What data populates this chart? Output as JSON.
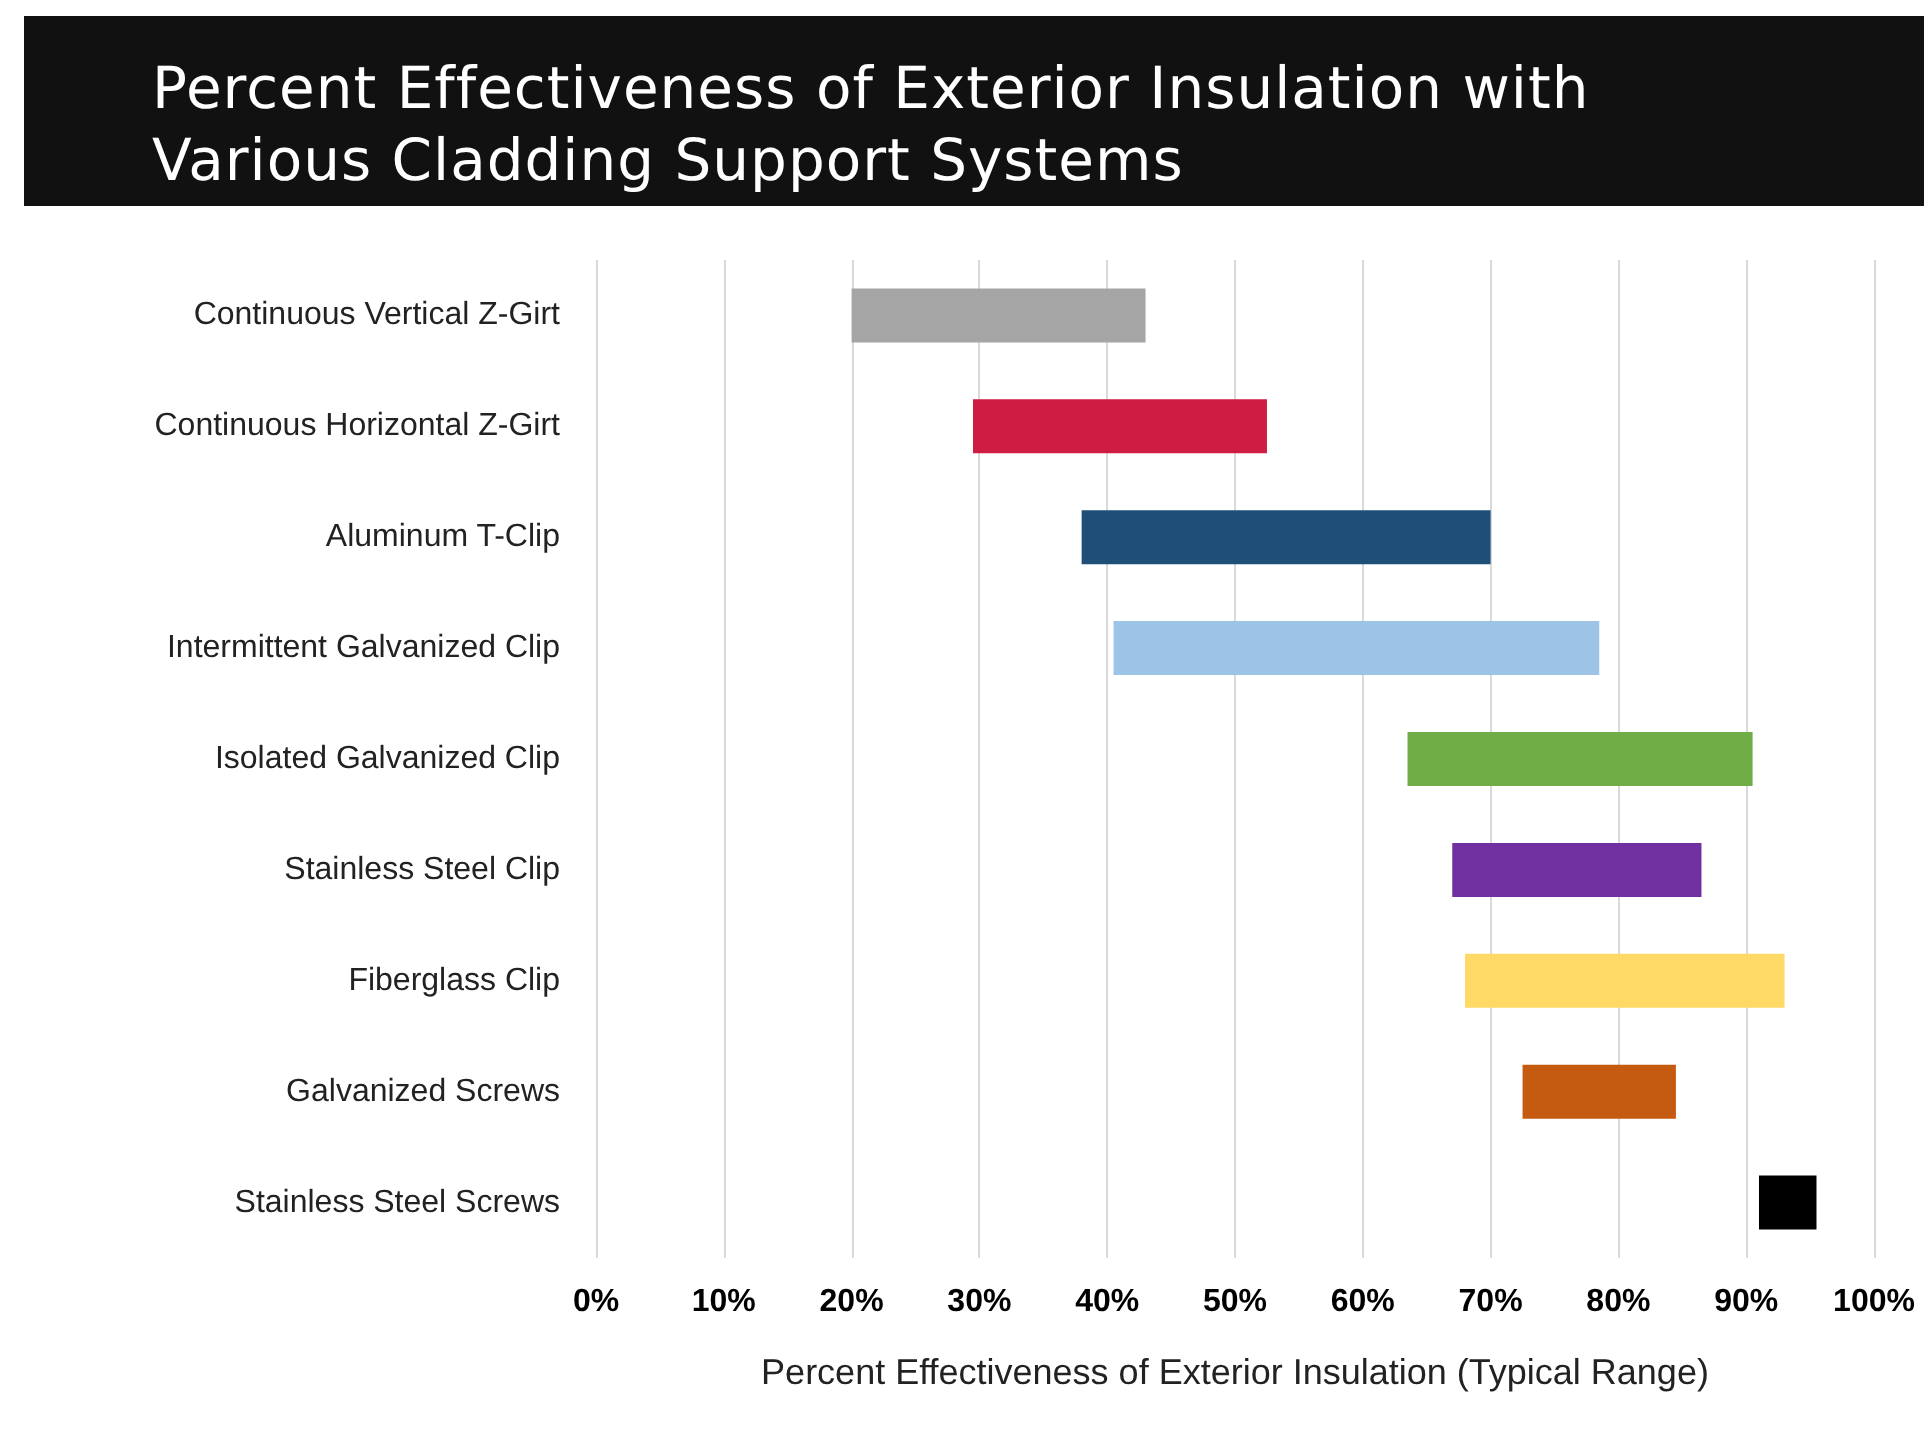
{
  "chart_data": {
    "type": "bar",
    "orientation": "horizontal",
    "title": "Percent Effectiveness of Exterior Insulation with Various Cladding Support Systems",
    "xlabel": "Percent Effectiveness of Exterior Insulation (Typical Range)",
    "categories": [
      "Continuous Vertical Z-Girt",
      "Continuous Horizontal Z-Girt",
      "Aluminum T-Clip",
      "Intermittent Galvanized Clip",
      "Isolated Galvanized Clip",
      "Stainless Steel Clip",
      "Fiberglass Clip",
      "Galvanized Screws",
      "Stainless Steel Screws"
    ],
    "base": [
      20,
      29.5,
      38,
      40.5,
      63.5,
      67,
      68,
      72.5,
      91
    ],
    "values": [
      23,
      23,
      32,
      38,
      27,
      19.5,
      25,
      12,
      4.5
    ],
    "colors": [
      "#a5a5a5",
      "#cf1c43",
      "#1f4e79",
      "#9dc3e6",
      "#70ad47",
      "#7030a0",
      "#ffd966",
      "#c55a11",
      "#000000"
    ],
    "xlim": [
      0,
      100
    ],
    "xticks": [
      {
        "value": 0,
        "label": "0%"
      },
      {
        "value": 10,
        "label": "10%"
      },
      {
        "value": 20,
        "label": "20%"
      },
      {
        "value": 30,
        "label": "30%"
      },
      {
        "value": 40,
        "label": "40%"
      },
      {
        "value": 50,
        "label": "50%"
      },
      {
        "value": 60,
        "label": "60%"
      },
      {
        "value": 70,
        "label": "70%"
      },
      {
        "value": 80,
        "label": "80%"
      },
      {
        "value": 90,
        "label": "90%"
      },
      {
        "value": 100,
        "label": "100%"
      }
    ],
    "grid": "x"
  }
}
